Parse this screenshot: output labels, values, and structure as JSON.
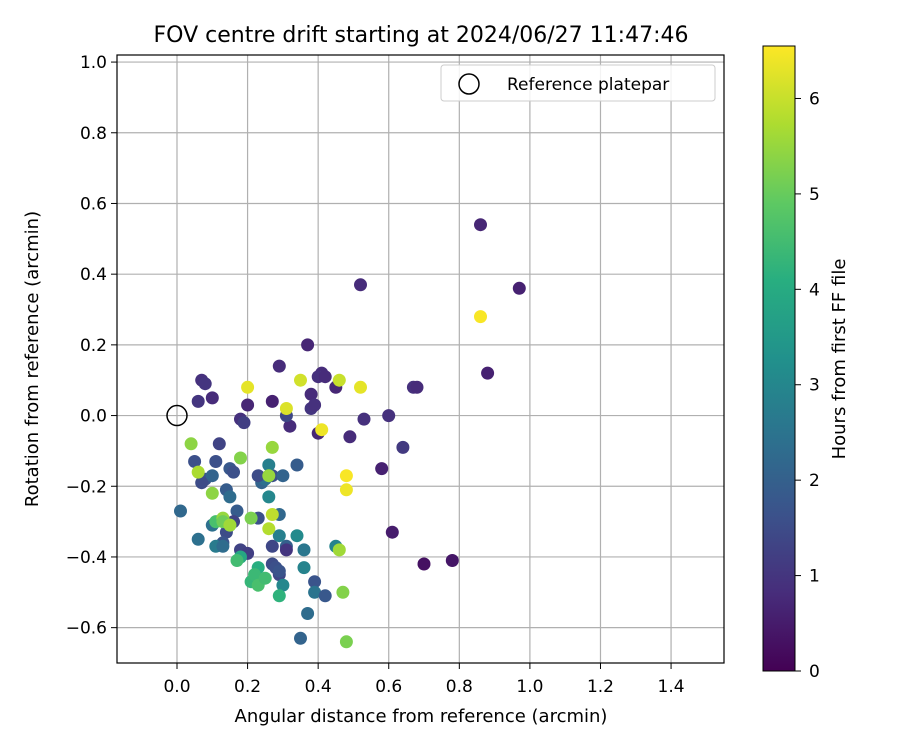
{
  "chart_data": {
    "type": "scatter",
    "title": "FOV centre drift starting at 2024/06/27 11:47:46",
    "xlabel": "Angular distance from reference (arcmin)",
    "ylabel": "Rotation from reference (arcmin)",
    "xlim": [
      -0.17,
      1.55
    ],
    "ylim": [
      -0.7,
      1.02
    ],
    "xticks": [
      0.0,
      0.2,
      0.4,
      0.6,
      0.8,
      1.0,
      1.2,
      1.4
    ],
    "yticks": [
      -0.6,
      -0.4,
      -0.2,
      0.0,
      0.2,
      0.4,
      0.6,
      0.8,
      1.0
    ],
    "xtick_labels": [
      "0.0",
      "0.2",
      "0.4",
      "0.6",
      "0.8",
      "1.0",
      "1.2",
      "1.4"
    ],
    "ytick_labels": [
      "−0.6",
      "−0.4",
      "−0.2",
      "0.0",
      "0.2",
      "0.4",
      "0.6",
      "0.8",
      "1.0"
    ],
    "grid": true,
    "legend": {
      "position": "top-right",
      "entries": [
        {
          "label": "Reference platepar",
          "marker": "hollow-circle",
          "color": "#000000"
        }
      ]
    },
    "reference_point": {
      "x": 0.0,
      "y": 0.0
    },
    "colorbar": {
      "label": "Hours from first FF file",
      "colormap": "viridis",
      "range": [
        0,
        6.55
      ],
      "ticks": [
        0,
        1,
        2,
        3,
        4,
        5,
        6
      ],
      "tick_labels": [
        "0",
        "1",
        "2",
        "3",
        "4",
        "5",
        "6"
      ]
    },
    "series": [
      {
        "marker": "filled-circle",
        "points": [
          [
            0.86,
            0.54,
            0.7
          ],
          [
            0.52,
            0.37,
            0.8
          ],
          [
            0.97,
            0.36,
            0.6
          ],
          [
            0.88,
            0.12,
            0.6
          ],
          [
            0.67,
            0.08,
            0.9
          ],
          [
            0.68,
            0.08,
            0.8
          ],
          [
            0.37,
            0.2,
            0.7
          ],
          [
            0.41,
            0.12,
            0.8
          ],
          [
            0.4,
            0.11,
            0.9
          ],
          [
            0.42,
            0.11,
            0.8
          ],
          [
            0.45,
            0.08,
            0.7
          ],
          [
            0.29,
            0.14,
            0.8
          ],
          [
            0.38,
            0.06,
            0.8
          ],
          [
            0.38,
            0.02,
            1.0
          ],
          [
            0.39,
            0.03,
            0.9
          ],
          [
            0.27,
            0.04,
            0.6
          ],
          [
            0.2,
            0.03,
            0.7
          ],
          [
            0.18,
            -0.01,
            0.9
          ],
          [
            0.19,
            -0.02,
            1.2
          ],
          [
            0.32,
            -0.03,
            0.8
          ],
          [
            0.31,
            0.0,
            1.4
          ],
          [
            0.07,
            0.1,
            0.9
          ],
          [
            0.08,
            0.09,
            1.0
          ],
          [
            0.06,
            0.04,
            1.0
          ],
          [
            0.1,
            0.05,
            0.8
          ],
          [
            0.6,
            0.0,
            0.9
          ],
          [
            0.53,
            -0.01,
            0.9
          ],
          [
            0.49,
            -0.06,
            0.8
          ],
          [
            0.4,
            -0.05,
            0.7
          ],
          [
            0.64,
            -0.09,
            1.1
          ],
          [
            0.58,
            -0.15,
            0.6
          ],
          [
            0.61,
            -0.33,
            0.5
          ],
          [
            0.7,
            -0.42,
            0.3
          ],
          [
            0.78,
            -0.41,
            0.4
          ],
          [
            0.12,
            -0.08,
            1.3
          ],
          [
            0.11,
            -0.13,
            1.6
          ],
          [
            0.05,
            -0.13,
            1.6
          ],
          [
            0.08,
            -0.18,
            1.7
          ],
          [
            0.1,
            -0.17,
            2.1
          ],
          [
            0.15,
            -0.15,
            1.8
          ],
          [
            0.16,
            -0.16,
            1.6
          ],
          [
            0.14,
            -0.21,
            1.9
          ],
          [
            0.15,
            -0.23,
            2.3
          ],
          [
            0.17,
            -0.27,
            1.9
          ],
          [
            0.16,
            -0.3,
            1.3
          ],
          [
            0.14,
            -0.33,
            1.5
          ],
          [
            0.13,
            -0.36,
            1.7
          ],
          [
            0.18,
            -0.38,
            1.3
          ],
          [
            0.2,
            -0.39,
            1.2
          ],
          [
            0.23,
            -0.29,
            1.6
          ],
          [
            0.24,
            -0.19,
            2.1
          ],
          [
            0.25,
            -0.18,
            2.4
          ],
          [
            0.23,
            -0.17,
            1.5
          ],
          [
            0.27,
            -0.17,
            1.6
          ],
          [
            0.3,
            -0.17,
            2.1
          ],
          [
            0.34,
            -0.14,
            1.9
          ],
          [
            0.26,
            -0.14,
            2.8
          ],
          [
            0.26,
            -0.23,
            3.0
          ],
          [
            0.29,
            -0.28,
            2.2
          ],
          [
            0.31,
            -0.37,
            2.0
          ],
          [
            0.27,
            -0.37,
            1.4
          ],
          [
            0.27,
            -0.42,
            1.5
          ],
          [
            0.28,
            -0.43,
            1.6
          ],
          [
            0.29,
            -0.45,
            1.4
          ],
          [
            0.29,
            -0.44,
            1.7
          ],
          [
            0.3,
            -0.48,
            3.0
          ],
          [
            0.29,
            -0.51,
            4.2
          ],
          [
            0.31,
            -0.38,
            1.0
          ],
          [
            0.36,
            -0.38,
            2.6
          ],
          [
            0.36,
            -0.43,
            2.9
          ],
          [
            0.39,
            -0.47,
            1.7
          ],
          [
            0.39,
            -0.5,
            2.5
          ],
          [
            0.42,
            -0.51,
            1.8
          ],
          [
            0.37,
            -0.56,
            2.3
          ],
          [
            0.35,
            -0.63,
            2.1
          ],
          [
            0.29,
            -0.34,
            2.8
          ],
          [
            0.34,
            -0.34,
            3.1
          ],
          [
            0.45,
            -0.37,
            2.9
          ],
          [
            0.47,
            -0.5,
            5.3
          ],
          [
            0.48,
            -0.64,
            5.2
          ],
          [
            0.46,
            -0.38,
            5.6
          ],
          [
            0.01,
            -0.27,
            2.2
          ],
          [
            0.06,
            -0.35,
            2.4
          ],
          [
            0.07,
            -0.19,
            1.5
          ],
          [
            0.1,
            -0.31,
            2.4
          ],
          [
            0.11,
            -0.37,
            2.7
          ],
          [
            0.13,
            -0.37,
            2.3
          ],
          [
            0.15,
            -0.31,
            3.3
          ],
          [
            0.18,
            -0.4,
            3.9
          ],
          [
            0.21,
            -0.47,
            4.3
          ],
          [
            0.23,
            -0.43,
            4.1
          ],
          [
            0.22,
            -0.45,
            4.4
          ],
          [
            0.23,
            -0.48,
            4.6
          ],
          [
            0.25,
            -0.46,
            4.5
          ],
          [
            0.17,
            -0.41,
            4.5
          ],
          [
            0.11,
            -0.3,
            4.6
          ],
          [
            0.13,
            -0.29,
            5.5
          ],
          [
            0.13,
            -0.3,
            5.1
          ],
          [
            0.15,
            -0.31,
            5.6
          ],
          [
            0.21,
            -0.29,
            5.2
          ],
          [
            0.18,
            -0.12,
            5.3
          ],
          [
            0.27,
            -0.09,
            5.5
          ],
          [
            0.26,
            -0.17,
            5.5
          ],
          [
            0.27,
            -0.28,
            5.9
          ],
          [
            0.26,
            -0.32,
            5.8
          ],
          [
            0.04,
            -0.08,
            5.4
          ],
          [
            0.06,
            -0.16,
            5.7
          ],
          [
            0.1,
            -0.22,
            5.4
          ],
          [
            0.2,
            0.08,
            6.3
          ],
          [
            0.35,
            0.1,
            6.1
          ],
          [
            0.31,
            0.02,
            6.2
          ],
          [
            0.46,
            0.1,
            6.0
          ],
          [
            0.52,
            0.08,
            6.3
          ],
          [
            0.41,
            -0.04,
            6.4
          ],
          [
            0.48,
            -0.17,
            6.5
          ],
          [
            0.48,
            -0.21,
            6.4
          ],
          [
            0.86,
            0.28,
            6.5
          ]
        ]
      }
    ]
  }
}
